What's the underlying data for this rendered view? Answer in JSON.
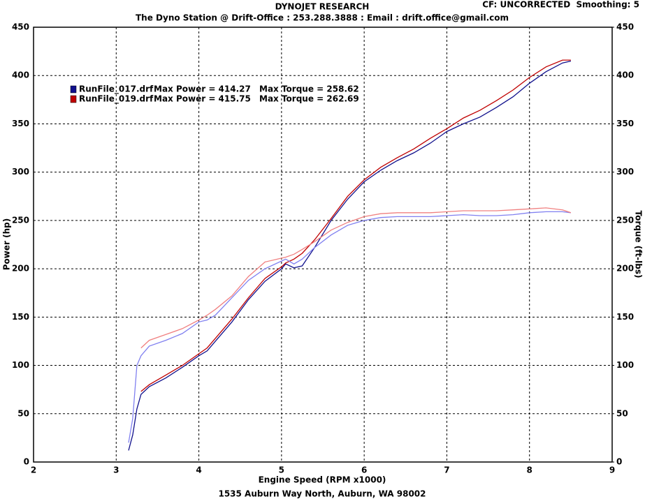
{
  "chart_data": {
    "type": "line",
    "title": "DYNOJET RESEARCH",
    "subtitle": "The Dyno Station @ Drift-Office : 253.288.3888 : Email : drift.office@gmail.com",
    "corner_note": "CF: UNCORRECTED  Smoothing: 5",
    "footer": "1535 Auburn Way North, Auburn, WA 98002",
    "x_label": "Engine Speed (RPM x1000)",
    "y_label": "Power (hp)",
    "y2_label": "Torque (ft-lbs)",
    "x": [
      3.15,
      3.2,
      3.25,
      3.3,
      3.4,
      3.6,
      3.8,
      4.0,
      4.1,
      4.2,
      4.4,
      4.6,
      4.8,
      5.0,
      5.05,
      5.15,
      5.25,
      5.4,
      5.6,
      5.8,
      6.0,
      6.2,
      6.4,
      6.6,
      6.8,
      7.0,
      7.2,
      7.4,
      7.6,
      7.8,
      8.0,
      8.2,
      8.4,
      8.5
    ],
    "series": [
      {
        "name": "RunFile_017.drf",
        "color": "#10108c",
        "legend_stats": [
          "Max Power = 414.27",
          "Max Torque = 258.62"
        ],
        "values": [
          12,
          28,
          55,
          70,
          78,
          87,
          98,
          110,
          115,
          125,
          145,
          168,
          187,
          200,
          205,
          201,
          203,
          222,
          250,
          272,
          290,
          302,
          312,
          320,
          330,
          342,
          350,
          357,
          367,
          378,
          392,
          404,
          413,
          415
        ]
      },
      {
        "name": "RunFile_019.drf",
        "color": "#c00000",
        "legend_stats": [
          "Max Power = 415.75",
          "Max Torque = 262.69"
        ],
        "values": [
          null,
          null,
          null,
          73,
          80,
          90,
          100,
          112,
          118,
          128,
          148,
          170,
          190,
          202,
          206,
          210,
          216,
          230,
          252,
          275,
          292,
          305,
          315,
          324,
          335,
          345,
          356,
          364,
          374,
          385,
          398,
          409,
          416,
          416
        ]
      },
      {
        "axis": "y2",
        "color": "#8080f0",
        "values": [
          20,
          45,
          100,
          110,
          120,
          126,
          133,
          145,
          147,
          152,
          170,
          188,
          200,
          208,
          210,
          205,
          210,
          222,
          235,
          245,
          250,
          253,
          254,
          254,
          254,
          255,
          256,
          255,
          255,
          256,
          258,
          259,
          259,
          258
        ]
      },
      {
        "axis": "y2",
        "color": "#f08080",
        "values": [
          null,
          null,
          null,
          118,
          126,
          132,
          138,
          147,
          152,
          158,
          172,
          192,
          207,
          211,
          212,
          215,
          220,
          228,
          240,
          248,
          254,
          257,
          258,
          258,
          258,
          259,
          260,
          260,
          260,
          261,
          262,
          263,
          261,
          258
        ]
      }
    ],
    "xlim": [
      2,
      9
    ],
    "xticks": [
      2,
      3,
      4,
      5,
      6,
      7,
      8,
      9
    ],
    "ylim": [
      0,
      450
    ],
    "yticks": [
      0,
      50,
      100,
      150,
      200,
      250,
      300,
      350,
      400,
      450
    ],
    "y2lim": [
      0,
      450
    ],
    "y2ticks": [
      0,
      50,
      100,
      150,
      200,
      250,
      300,
      350,
      400,
      450
    ],
    "grid": true
  }
}
